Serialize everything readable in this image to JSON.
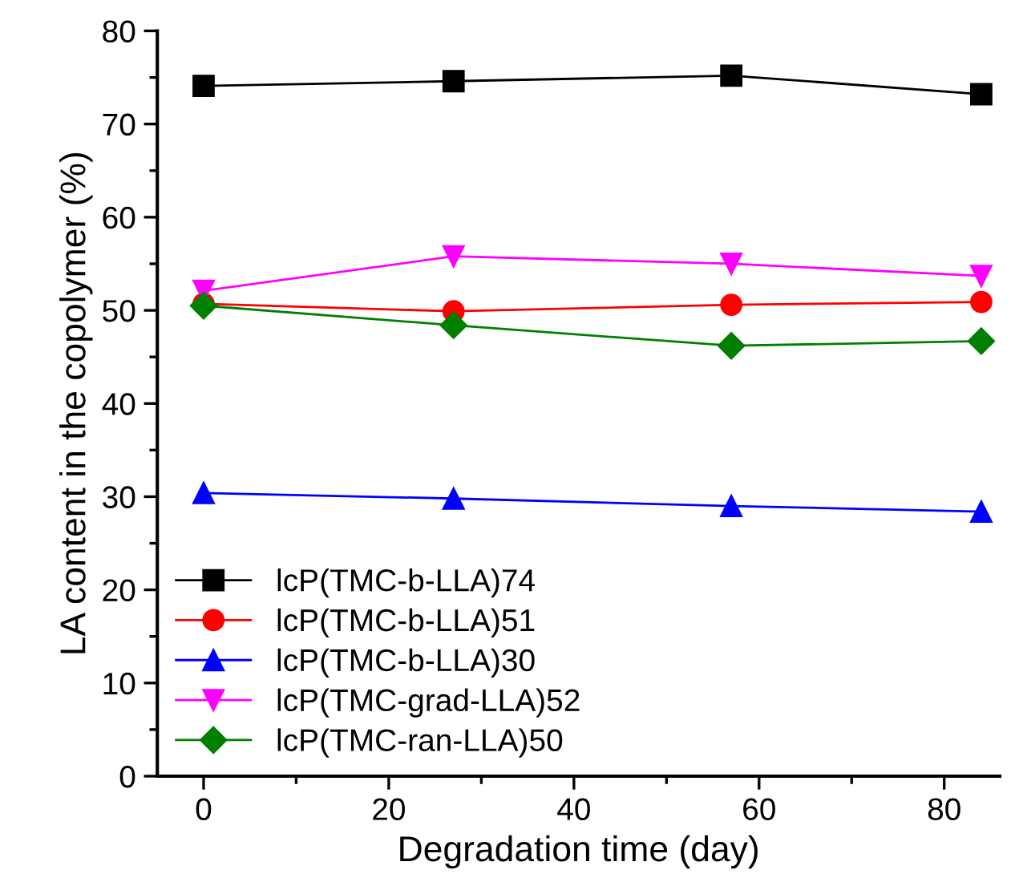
{
  "chart_data": {
    "type": "line",
    "xlabel": "Degradation time (day)",
    "ylabel": "LA content in the copolymer (%)",
    "x": [
      0,
      27,
      57,
      84
    ],
    "xlim": [
      -5,
      86
    ],
    "xticks": [
      0,
      20,
      40,
      60,
      80
    ],
    "ylim": [
      0,
      80
    ],
    "yticks": [
      0,
      10,
      20,
      30,
      40,
      50,
      60,
      70,
      80
    ],
    "grid": false,
    "legend": "bottom left",
    "series": [
      {
        "name": "lcP(TMC-b-LLA)74",
        "color": "#000000",
        "marker": "square",
        "values": [
          74.1,
          74.6,
          75.2,
          73.2
        ]
      },
      {
        "name": "lcP(TMC-b-LLA)51",
        "color": "#ff0000",
        "marker": "circle",
        "values": [
          50.7,
          49.9,
          50.6,
          50.9
        ]
      },
      {
        "name": "lcP(TMC-b-LLA)30",
        "color": "#0000ff",
        "marker": "triangle",
        "values": [
          30.4,
          29.8,
          29.0,
          28.4
        ]
      },
      {
        "name": "lcP(TMC-grad-LLA)52",
        "color": "#ff00ff",
        "marker": "triangle_down",
        "values": [
          52.1,
          55.8,
          55.0,
          53.7
        ]
      },
      {
        "name": "lcP(TMC-ran-LLA)50",
        "color": "#008000",
        "marker": "diamond",
        "values": [
          50.5,
          48.4,
          46.2,
          46.7
        ]
      }
    ]
  }
}
